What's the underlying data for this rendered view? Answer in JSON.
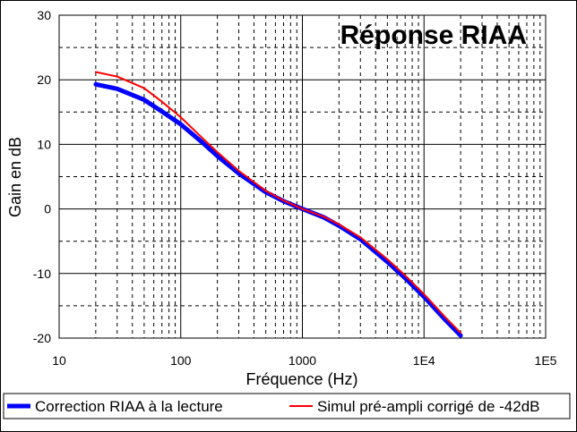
{
  "chart_data": {
    "type": "line",
    "title": "Réponse RIAA",
    "xlabel": "Fréquence (Hz)",
    "ylabel": "Gain en dB",
    "xscale": "log",
    "xlim": [
      10,
      100000
    ],
    "ylim": [
      -20,
      30
    ],
    "x_tick_values": [
      10,
      100,
      1000,
      10000,
      100000
    ],
    "x_tick_labels": [
      "10",
      "100",
      "1000",
      "1E4",
      "1E5"
    ],
    "y_tick_values": [
      30,
      20,
      10,
      0,
      -10,
      -20
    ],
    "y_tick_labels": [
      "30",
      "20",
      "10",
      "0",
      "-10",
      "-20"
    ],
    "grid": true,
    "legend_position": "bottom",
    "series": [
      {
        "name": "Correction RIAA à la lecture",
        "color": "#0000ff",
        "line_style": "thick",
        "x": [
          20,
          30,
          50,
          70,
          100,
          150,
          200,
          300,
          500,
          700,
          1000,
          1500,
          2000,
          3000,
          5000,
          7000,
          10000,
          15000,
          20000
        ],
        "y": [
          19.3,
          18.6,
          16.9,
          15.1,
          13.1,
          10.3,
          8.2,
          5.5,
          2.6,
          1.2,
          0.0,
          -1.3,
          -2.6,
          -4.7,
          -8.2,
          -10.7,
          -13.6,
          -17.2,
          -19.6
        ]
      },
      {
        "name": "Simul pré-ampli corrigé de -42dB",
        "color": "#ff0000",
        "line_style": "thin",
        "x": [
          20,
          30,
          50,
          70,
          100,
          150,
          200,
          300,
          500,
          700,
          1000,
          1500,
          2000,
          3000,
          5000,
          7000,
          10000,
          15000,
          20000
        ],
        "y": [
          21.2,
          20.5,
          18.7,
          16.6,
          14.2,
          11.0,
          8.8,
          5.9,
          2.8,
          1.3,
          0.0,
          -1.2,
          -2.4,
          -4.4,
          -7.8,
          -10.3,
          -13.2,
          -16.8,
          -19.2
        ]
      }
    ]
  }
}
